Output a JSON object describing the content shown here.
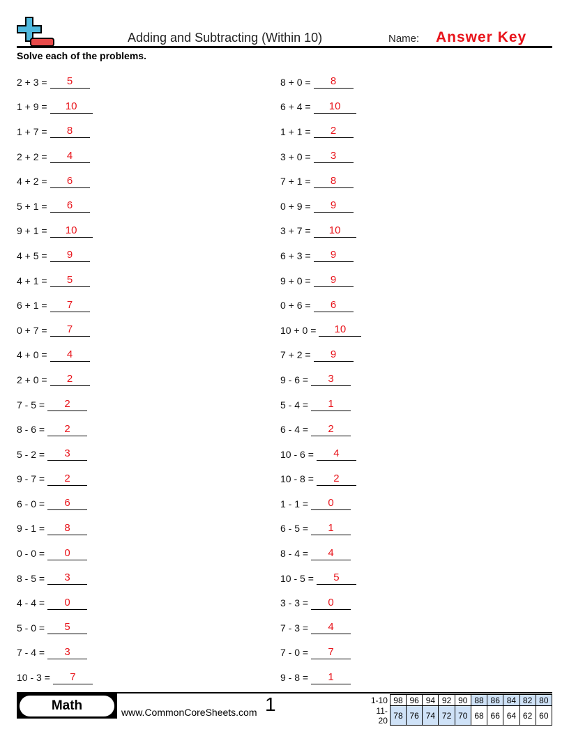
{
  "header": {
    "title": "Adding and Subtracting (Within 10)",
    "name_label": "Name:",
    "answer_key": "Answer Key",
    "colors": {
      "plus": "#4fb8dd",
      "minus": "#e84a4a",
      "answer": "#e8141b"
    }
  },
  "instructions": "Solve each of the problems.",
  "columns": [
    [
      {
        "q": "2 + 3 =",
        "a": "5"
      },
      {
        "q": "1 + 9 =",
        "a": "10"
      },
      {
        "q": "1 + 7 =",
        "a": "8"
      },
      {
        "q": "2 + 2 =",
        "a": "4"
      },
      {
        "q": "4 + 2 =",
        "a": "6"
      },
      {
        "q": "5 + 1 =",
        "a": "6"
      },
      {
        "q": "9 + 1 =",
        "a": "10"
      },
      {
        "q": "4 + 5 =",
        "a": "9"
      },
      {
        "q": "4 + 1 =",
        "a": "5"
      },
      {
        "q": "6 + 1 =",
        "a": "7"
      },
      {
        "q": "0 + 7 =",
        "a": "7"
      },
      {
        "q": "4 + 0 =",
        "a": "4"
      },
      {
        "q": "2 + 0 =",
        "a": "2"
      },
      {
        "q": "7 - 5 =",
        "a": "2"
      },
      {
        "q": "8 - 6 =",
        "a": "2"
      },
      {
        "q": "5 - 2 =",
        "a": "3"
      },
      {
        "q": "9 - 7 =",
        "a": "2"
      },
      {
        "q": "6 - 0 =",
        "a": "6"
      },
      {
        "q": "9 - 1 =",
        "a": "8"
      },
      {
        "q": "0 - 0 =",
        "a": "0"
      },
      {
        "q": "8 - 5 =",
        "a": "3"
      },
      {
        "q": "4 - 4 =",
        "a": "0"
      },
      {
        "q": "5 - 0 =",
        "a": "5"
      },
      {
        "q": "7 - 4 =",
        "a": "3"
      },
      {
        "q": "10 - 3 =",
        "a": "7"
      }
    ],
    [
      {
        "q": "8 + 0 =",
        "a": "8"
      },
      {
        "q": "6 + 4 =",
        "a": "10"
      },
      {
        "q": "1 + 1 =",
        "a": "2"
      },
      {
        "q": "3 + 0 =",
        "a": "3"
      },
      {
        "q": "7 + 1 =",
        "a": "8"
      },
      {
        "q": "0 + 9 =",
        "a": "9"
      },
      {
        "q": "3 + 7 =",
        "a": "10"
      },
      {
        "q": "6 + 3 =",
        "a": "9"
      },
      {
        "q": "9 + 0 =",
        "a": "9"
      },
      {
        "q": "0 + 6 =",
        "a": "6"
      },
      {
        "q": "10 + 0 =",
        "a": "10"
      },
      {
        "q": "7 + 2 =",
        "a": "9"
      },
      {
        "q": "9 - 6 =",
        "a": "3"
      },
      {
        "q": "5 - 4 =",
        "a": "1"
      },
      {
        "q": "6 - 4 =",
        "a": "2"
      },
      {
        "q": "10 - 6 =",
        "a": "4"
      },
      {
        "q": "10 - 8 =",
        "a": "2"
      },
      {
        "q": "1 - 1 =",
        "a": "0"
      },
      {
        "q": "6 - 5 =",
        "a": "1"
      },
      {
        "q": "8 - 4 =",
        "a": "4"
      },
      {
        "q": "10 - 5 =",
        "a": "5"
      },
      {
        "q": "3 - 3 =",
        "a": "0"
      },
      {
        "q": "7 - 3 =",
        "a": "4"
      },
      {
        "q": "7 - 0 =",
        "a": "7"
      },
      {
        "q": "9 - 8 =",
        "a": "1"
      }
    ]
  ],
  "footer": {
    "subject": "Math",
    "site": "www.CommonCoreSheets.com",
    "page": "1",
    "score_rows": [
      {
        "label": "1-10",
        "scores": [
          "98",
          "96",
          "94",
          "92",
          "90",
          "88",
          "86",
          "84",
          "82",
          "80"
        ],
        "highlight": [
          5,
          6,
          7,
          8,
          9
        ]
      },
      {
        "label": "11-20",
        "scores": [
          "78",
          "76",
          "74",
          "72",
          "70",
          "68",
          "66",
          "64",
          "62",
          "60"
        ],
        "highlight": [
          0,
          1,
          2,
          3,
          4
        ]
      }
    ]
  }
}
